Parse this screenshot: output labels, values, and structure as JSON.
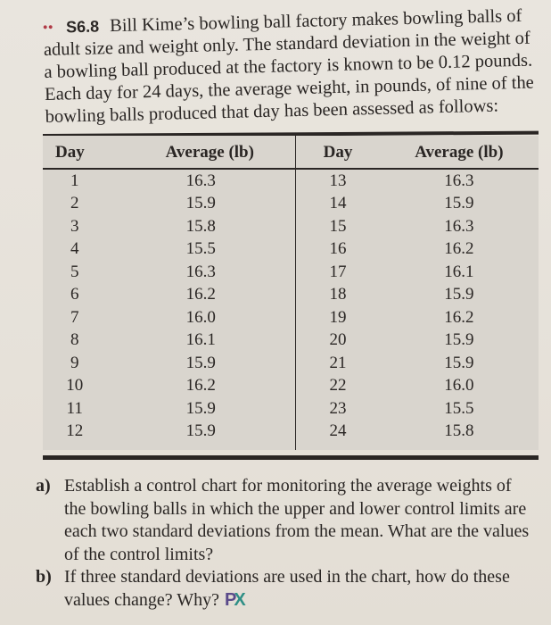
{
  "problem": {
    "difficulty_marker": "••",
    "number": "S6.8",
    "statement": "Bill Kime’s bowling ball factory makes bowling balls of adult size and weight only. The standard deviation in the weight of a bowling ball produced at the factory is known to be 0.12 pounds. Each day for 24 days, the average weight, in pounds, of nine of the bowling balls produced that day has been assessed as follows:"
  },
  "table": {
    "headers": [
      "Day",
      "Average (lb)",
      "Day",
      "Average (lb)"
    ],
    "rows": [
      [
        "1",
        "16.3",
        "13",
        "16.3"
      ],
      [
        "2",
        "15.9",
        "14",
        "15.9"
      ],
      [
        "3",
        "15.8",
        "15",
        "16.3"
      ],
      [
        "4",
        "15.5",
        "16",
        "16.2"
      ],
      [
        "5",
        "16.3",
        "17",
        "16.1"
      ],
      [
        "6",
        "16.2",
        "18",
        "15.9"
      ],
      [
        "7",
        "16.0",
        "19",
        "16.2"
      ],
      [
        "8",
        "16.1",
        "20",
        "15.9"
      ],
      [
        "9",
        "15.9",
        "21",
        "15.9"
      ],
      [
        "10",
        "16.2",
        "22",
        "16.0"
      ],
      [
        "11",
        "15.9",
        "23",
        "15.5"
      ],
      [
        "12",
        "15.9",
        "24",
        "15.8"
      ]
    ]
  },
  "questions": [
    {
      "label": "a)",
      "text": "Establish a control chart for monitoring the average weights of the bowling balls in which the upper and lower control limits are each two standard deviations from the mean. What are the values of the control limits?"
    },
    {
      "label": "b)",
      "text": "If three standard deviations are used in the chart, how do these values change? Why?"
    }
  ],
  "badge": {
    "icon": "px-icon",
    "p": "P",
    "x": "X",
    "colors": {
      "p": "#5a4a8a",
      "x": "#2f8f86"
    }
  }
}
